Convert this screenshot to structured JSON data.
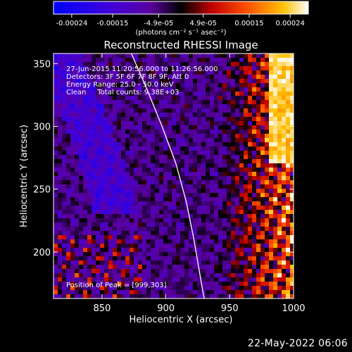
{
  "chart_data": {
    "type": "heatmap",
    "title": "Reconstructed RHESSI Image",
    "xlabel": "Heliocentric X (arcsec)",
    "ylabel": "Heliocentric Y (arcsec)",
    "xlim": [
      812,
      1000
    ],
    "ylim": [
      163,
      358
    ],
    "xticks": [
      850,
      900,
      950,
      1000
    ],
    "yticks": [
      200,
      250,
      300,
      350
    ],
    "colorbar": {
      "label": "(photons cm⁻² s⁻¹ asec⁻²)",
      "range": [
        -0.00028,
        0.00028
      ],
      "ticks": [
        "-0.00024",
        "-0.00015",
        "-4.9e-05",
        "4.9e-05",
        "0.00015",
        "0.00024"
      ],
      "tick_values": [
        -0.00024,
        -0.00015,
        -4.9e-05,
        4.9e-05,
        0.00015,
        0.00024
      ]
    },
    "info_lines": [
      "27-Jun-2015 11:20:56.000 to 11:26:56.000",
      "Detectors: 3F 5F 6F 7F 8F 9F, Att 0",
      "Energy Range: 25.0 - 50.0 keV",
      "Clean     Total counts: 9.38E+03"
    ],
    "peak_label": "Position of Peak = [999,303]",
    "peak": [
      999,
      303
    ],
    "limb_points": [
      [
        873,
        358
      ],
      [
        885,
        330
      ],
      [
        897,
        300
      ],
      [
        908,
        270
      ],
      [
        916,
        240
      ],
      [
        922,
        210
      ],
      [
        927,
        180
      ],
      [
        930,
        163
      ]
    ]
  },
  "timestamp": "22-May-2022 06:06"
}
